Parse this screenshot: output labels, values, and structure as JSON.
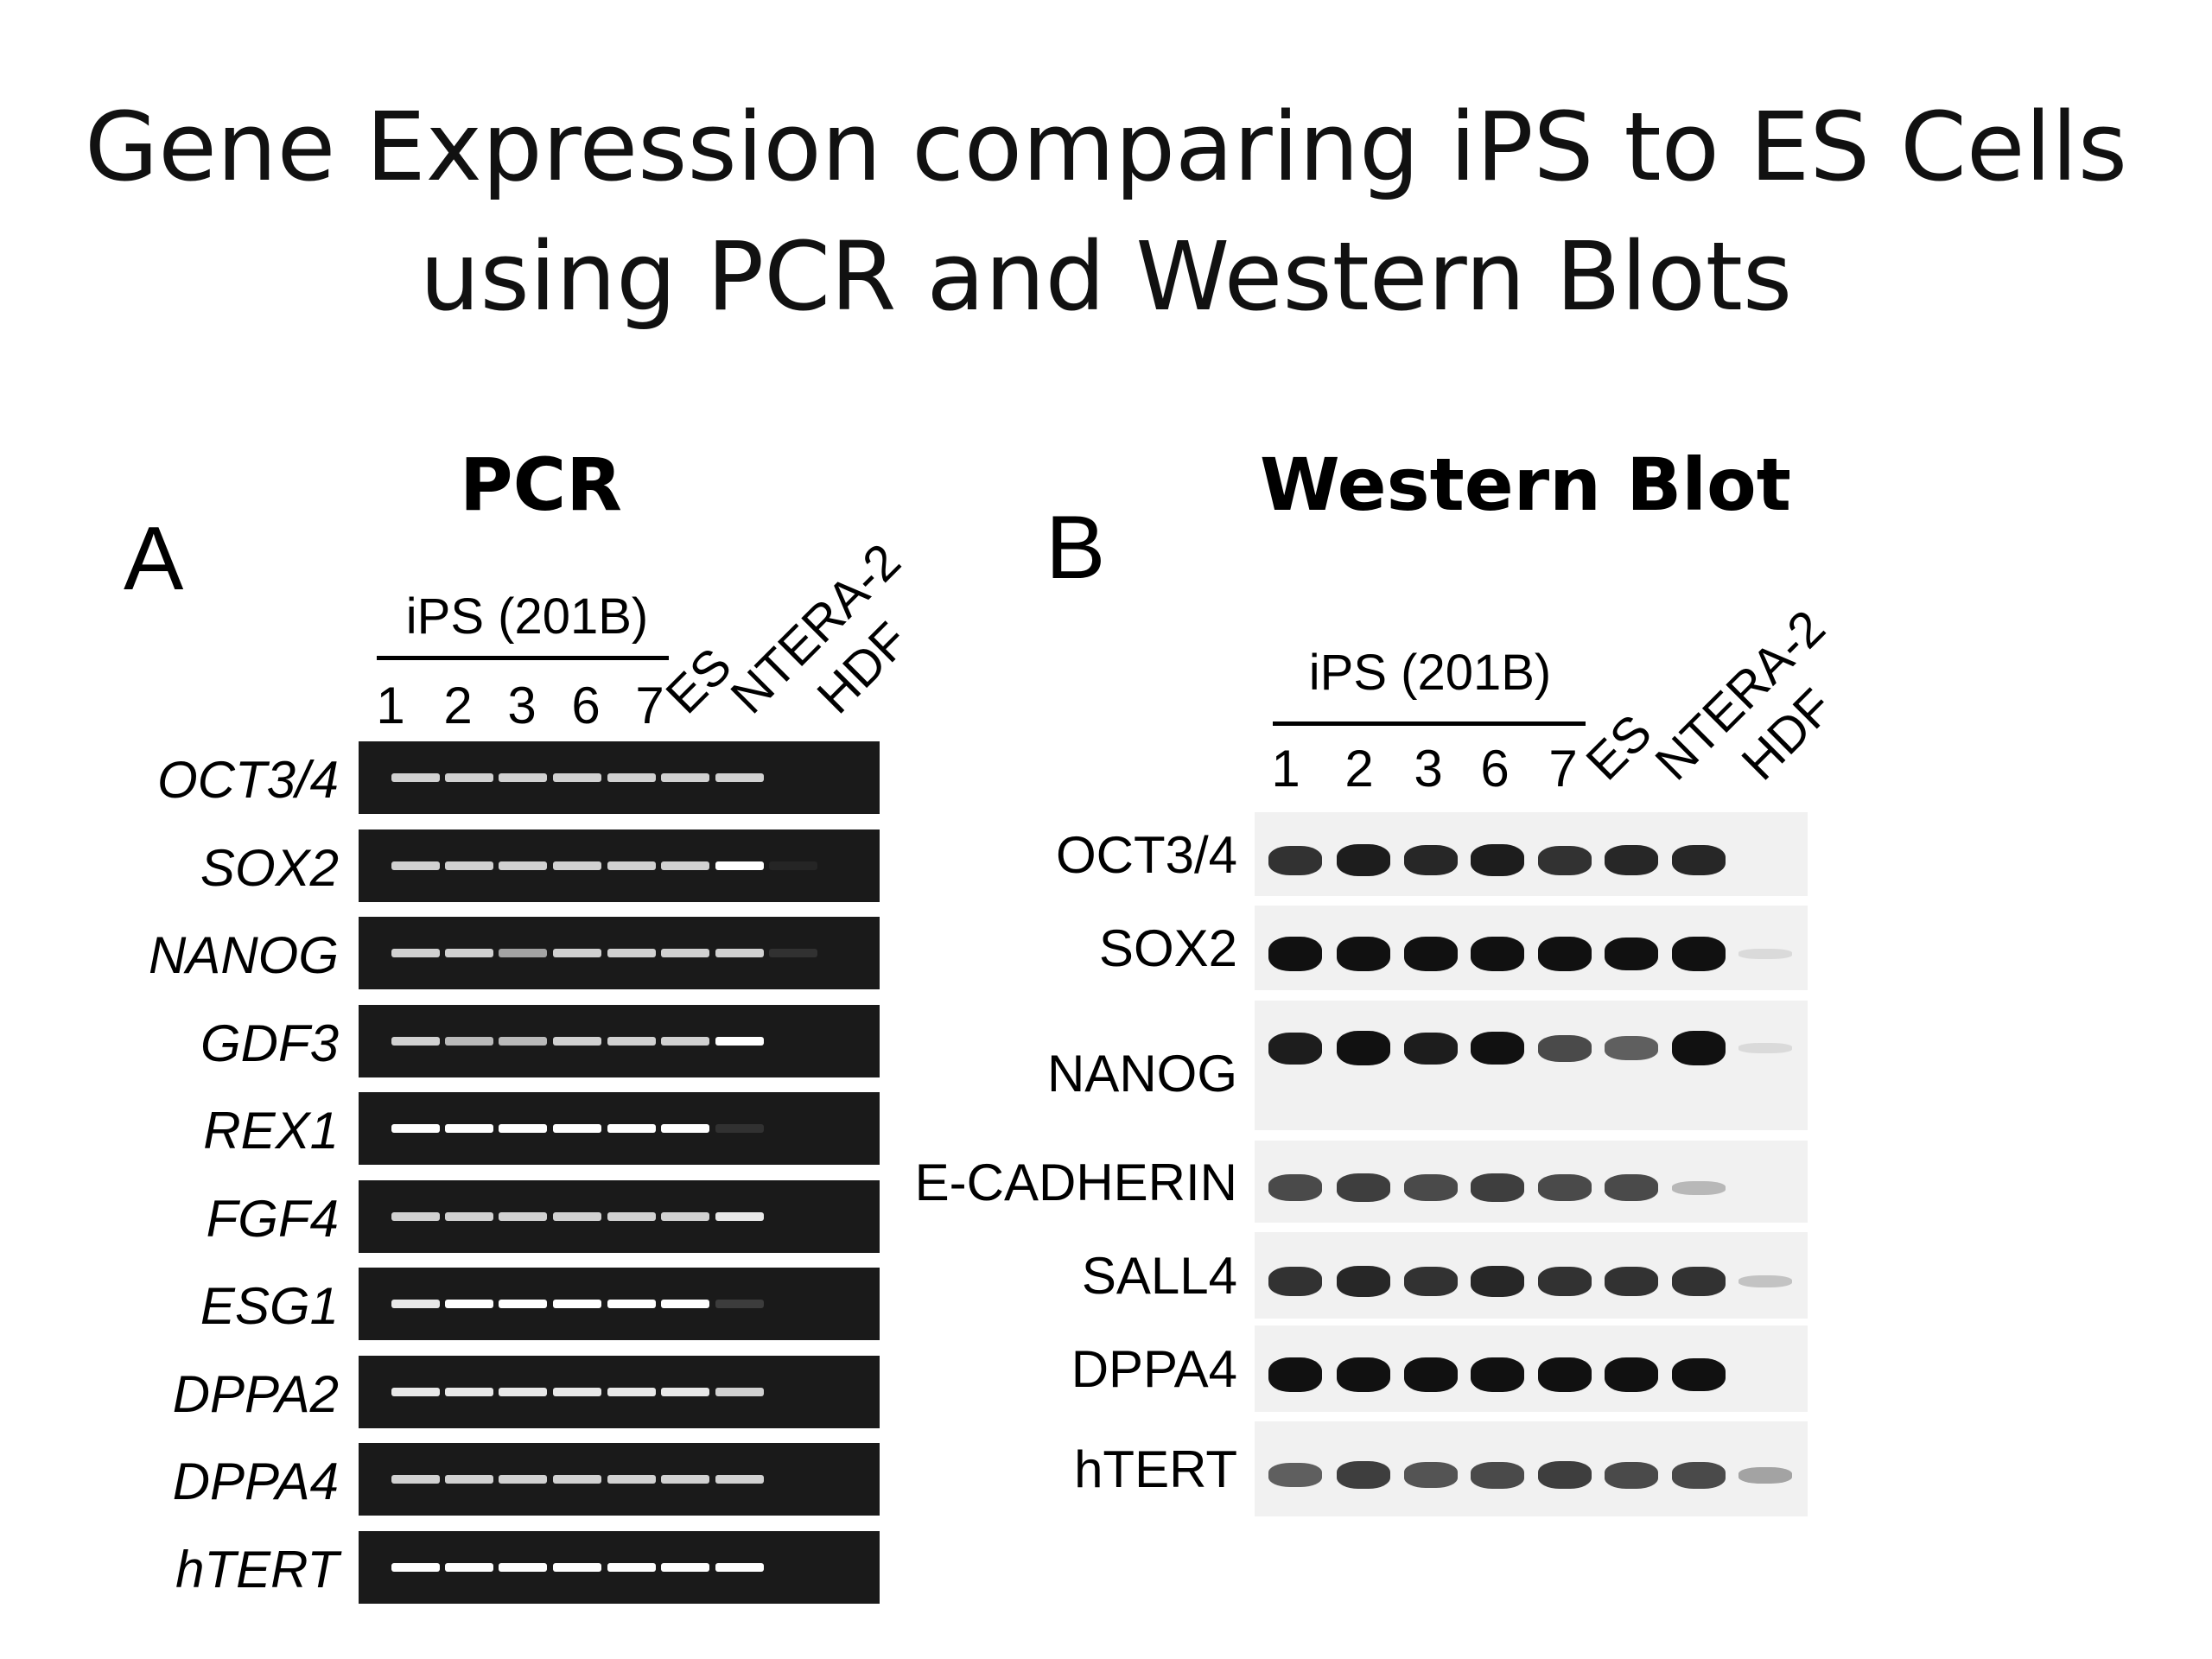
{
  "slide": {
    "title_line1": "Gene Expression comparing iPS to ES Cells",
    "title_line2": "using PCR and Western Blots"
  },
  "panel_a": {
    "heading": "PCR",
    "letter": "A",
    "group_label": "iPS (201B)",
    "lane_numbers": [
      "1",
      "2",
      "3",
      "6",
      "7"
    ],
    "rotated_labels": [
      "ES",
      "NTERA-2",
      "HDF"
    ],
    "genes": [
      "OCT3/4",
      "SOX2",
      "NANOG",
      "GDF3",
      "REX1",
      "FGF4",
      "ESG1",
      "DPPA2",
      "DPPA4",
      "hTERT"
    ],
    "band_intensity": [
      [
        0.8,
        0.8,
        0.8,
        0.8,
        0.8,
        0.8,
        0.8,
        0.0
      ],
      [
        0.8,
        0.8,
        0.8,
        0.8,
        0.8,
        0.8,
        1.0,
        0.05
      ],
      [
        0.8,
        0.8,
        0.6,
        0.8,
        0.8,
        0.8,
        0.8,
        0.1
      ],
      [
        0.8,
        0.7,
        0.7,
        0.8,
        0.8,
        0.8,
        1.0,
        0.0
      ],
      [
        1.0,
        1.0,
        1.0,
        1.0,
        1.0,
        1.0,
        0.1,
        0.0
      ],
      [
        0.8,
        0.8,
        0.8,
        0.8,
        0.8,
        0.8,
        0.9,
        0.0
      ],
      [
        0.9,
        1.0,
        1.0,
        1.0,
        1.0,
        1.0,
        0.15,
        0.0
      ],
      [
        0.9,
        0.9,
        0.9,
        0.9,
        0.9,
        0.9,
        0.8,
        0.0
      ],
      [
        0.8,
        0.8,
        0.8,
        0.8,
        0.8,
        0.8,
        0.8,
        0.0
      ],
      [
        1.0,
        1.0,
        1.0,
        1.0,
        1.0,
        1.0,
        1.0,
        0.0
      ]
    ]
  },
  "panel_b": {
    "heading": "Western Blot",
    "letter": "B",
    "group_label": "iPS (201B)",
    "lane_numbers": [
      "1",
      "2",
      "3",
      "6",
      "7"
    ],
    "rotated_labels": [
      "ES",
      "NTERA-2",
      "HDF"
    ],
    "proteins": [
      "OCT3/4",
      "SOX2",
      "NANOG",
      "E-CADHERIN",
      "SALL4",
      "DPPA4",
      "hTERT"
    ],
    "band_intensity": [
      [
        0.8,
        0.9,
        0.85,
        0.9,
        0.8,
        0.85,
        0.85,
        0.0
      ],
      [
        1.0,
        1.0,
        1.0,
        1.0,
        1.0,
        0.95,
        1.0,
        0.05
      ],
      [
        0.9,
        1.0,
        0.9,
        0.95,
        0.7,
        0.6,
        1.0,
        0.05
      ],
      [
        0.7,
        0.75,
        0.7,
        0.75,
        0.7,
        0.7,
        0.2,
        0.0
      ],
      [
        0.8,
        0.85,
        0.8,
        0.85,
        0.8,
        0.8,
        0.8,
        0.15
      ],
      [
        1.0,
        1.0,
        1.0,
        1.0,
        1.0,
        1.0,
        0.95,
        0.0
      ],
      [
        0.6,
        0.75,
        0.65,
        0.7,
        0.75,
        0.7,
        0.7,
        0.3
      ]
    ]
  },
  "colors": {
    "gel_background": "#1a1a1a",
    "gel_band": "#ffffff",
    "blot_background": "#f1f1f1",
    "blot_band": "#111111"
  }
}
